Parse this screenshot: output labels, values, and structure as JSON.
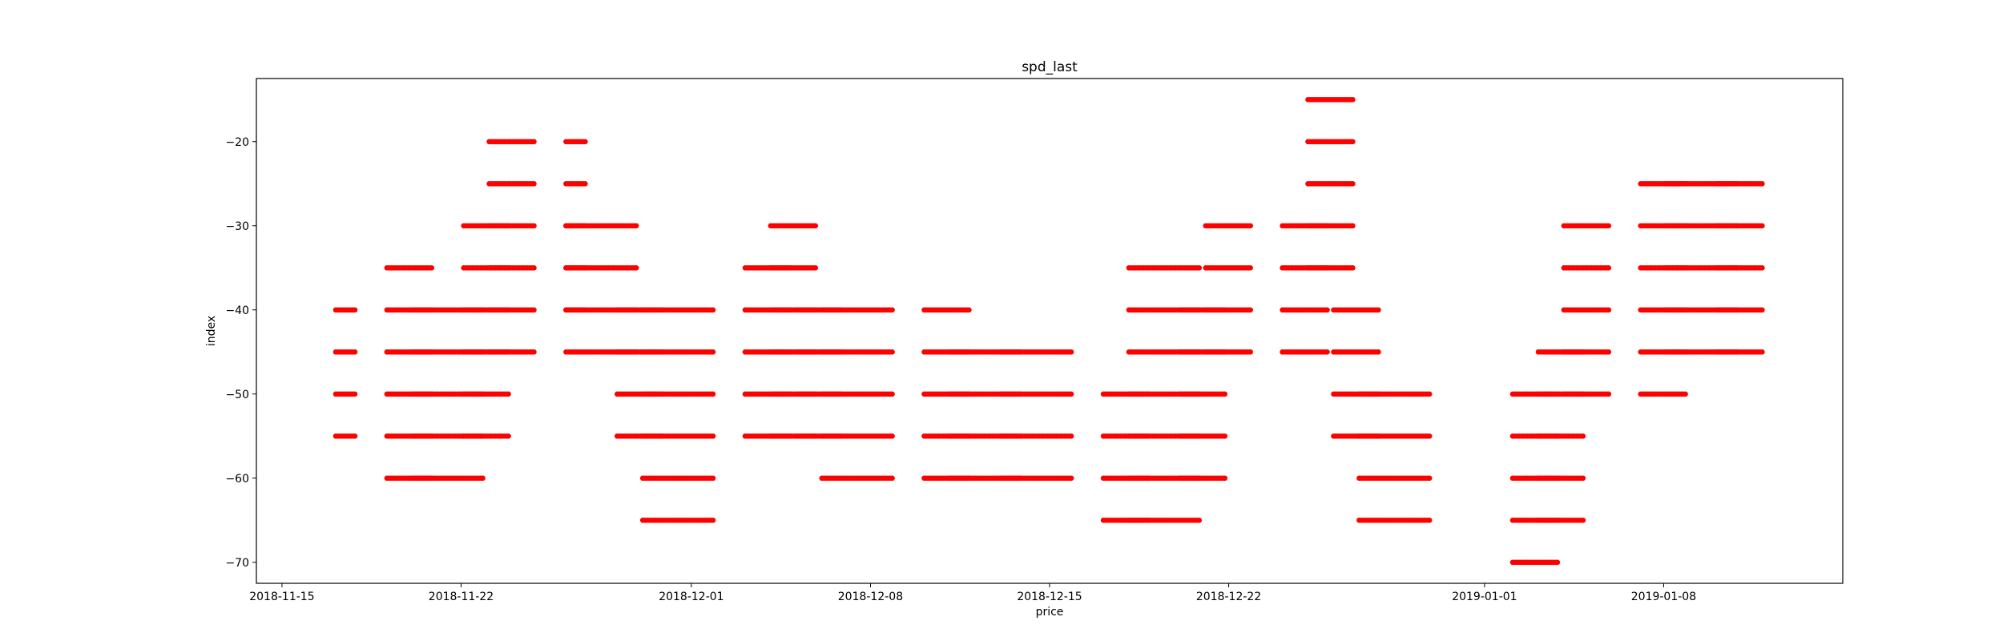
{
  "chart_data": {
    "type": "scatter",
    "title": "spd_last",
    "xlabel": "price",
    "ylabel": "index",
    "x_axis_type": "date",
    "xlim": [
      "2018-11-14",
      "2019-01-15"
    ],
    "ylim": [
      -72.5,
      -12.5
    ],
    "x_ticks": [
      "2018-11-15",
      "2018-11-22",
      "2018-12-01",
      "2018-12-08",
      "2018-12-15",
      "2018-12-22",
      "2019-01-01",
      "2019-01-08"
    ],
    "y_ticks": [
      -70,
      -60,
      -50,
      -40,
      -30,
      -20
    ],
    "grid": false,
    "legend": "none",
    "marker_color": "#ff0000",
    "groups": [
      {
        "x_start": "2018-11-17",
        "x_end": "2018-11-17",
        "y_values": [
          -40,
          -45,
          -50,
          -55
        ]
      },
      {
        "x_start": "2018-11-19",
        "x_end": "2018-11-20",
        "y_values": [
          -35,
          -40,
          -45,
          -50,
          -55,
          -60
        ]
      },
      {
        "x_start": "2018-11-20",
        "x_end": "2018-11-22",
        "y_values": [
          -40,
          -45,
          -50,
          -55,
          -60
        ]
      },
      {
        "x_start": "2018-11-22",
        "x_end": "2018-11-23",
        "y_values": [
          -30,
          -35,
          -40,
          -45,
          -50,
          -55
        ]
      },
      {
        "x_start": "2018-11-23",
        "x_end": "2018-11-24",
        "y_values": [
          -20,
          -25,
          -30,
          -35,
          -40,
          -45
        ]
      },
      {
        "x_start": "2018-11-26",
        "x_end": "2018-11-26",
        "y_values": [
          -20,
          -25,
          -30,
          -35,
          -40
        ]
      },
      {
        "x_start": "2018-11-26",
        "x_end": "2018-11-28",
        "y_values": [
          -30,
          -35,
          -40,
          -45
        ]
      },
      {
        "x_start": "2018-11-28",
        "x_end": "2018-11-29",
        "y_values": [
          -40,
          -45,
          -50,
          -55
        ]
      },
      {
        "x_start": "2018-11-29",
        "x_end": "2018-12-01",
        "y_values": [
          -40,
          -45,
          -50,
          -55,
          -60,
          -65
        ]
      },
      {
        "x_start": "2018-12-03",
        "x_end": "2018-12-04",
        "y_values": [
          -35,
          -40,
          -45,
          -50,
          -55
        ]
      },
      {
        "x_start": "2018-12-04",
        "x_end": "2018-12-05",
        "y_values": [
          -30,
          -35,
          -40,
          -45,
          -50,
          -55
        ]
      },
      {
        "x_start": "2018-12-05",
        "x_end": "2018-12-06",
        "y_values": [
          -40,
          -45,
          -50,
          -55
        ]
      },
      {
        "x_start": "2018-12-06",
        "x_end": "2018-12-08",
        "y_values": [
          -40,
          -45,
          -50,
          -55,
          -60
        ]
      },
      {
        "x_start": "2018-12-10",
        "x_end": "2018-12-11",
        "y_values": [
          -40,
          -45,
          -50,
          -55,
          -60
        ]
      },
      {
        "x_start": "2018-12-11",
        "x_end": "2018-12-13",
        "y_values": [
          -45,
          -50,
          -55,
          -60
        ]
      },
      {
        "x_start": "2018-12-13",
        "x_end": "2018-12-15",
        "y_values": [
          -45,
          -50,
          -55,
          -60
        ]
      },
      {
        "x_start": "2018-12-17",
        "x_end": "2018-12-18",
        "y_values": [
          -50,
          -55,
          -60,
          -65
        ]
      },
      {
        "x_start": "2018-12-18",
        "x_end": "2018-12-20",
        "y_values": [
          -35,
          -40,
          -45,
          -50,
          -55,
          -60,
          -65
        ]
      },
      {
        "x_start": "2018-12-20",
        "x_end": "2018-12-21",
        "y_values": [
          -40,
          -45,
          -50,
          -55,
          -60
        ]
      },
      {
        "x_start": "2018-12-21",
        "x_end": "2018-12-22",
        "y_values": [
          -30,
          -35,
          -40,
          -45
        ]
      },
      {
        "x_start": "2018-12-24",
        "x_end": "2018-12-25",
        "y_values": [
          -30,
          -35,
          -40,
          -45
        ]
      },
      {
        "x_start": "2018-12-25",
        "x_end": "2018-12-26",
        "y_values": [
          -15,
          -20,
          -25,
          -30,
          -35
        ]
      },
      {
        "x_start": "2018-12-26",
        "x_end": "2018-12-27",
        "y_values": [
          -40,
          -45,
          -50,
          -55
        ]
      },
      {
        "x_start": "2018-12-27",
        "x_end": "2018-12-29",
        "y_values": [
          -50,
          -55,
          -60,
          -65
        ]
      },
      {
        "x_start": "2019-01-02",
        "x_end": "2019-01-03",
        "y_values": [
          -50,
          -55,
          -60,
          -65,
          -70
        ]
      },
      {
        "x_start": "2019-01-03",
        "x_end": "2019-01-04",
        "y_values": [
          -45,
          -50,
          -55,
          -60,
          -65
        ]
      },
      {
        "x_start": "2019-01-04",
        "x_end": "2019-01-05",
        "y_values": [
          -30,
          -35,
          -40,
          -45,
          -50
        ]
      },
      {
        "x_start": "2019-01-07",
        "x_end": "2019-01-08",
        "y_values": [
          -25,
          -30,
          -35,
          -40,
          -45,
          -50
        ]
      },
      {
        "x_start": "2019-01-08",
        "x_end": "2019-01-10",
        "y_values": [
          -25,
          -30,
          -35,
          -40,
          -45
        ]
      },
      {
        "x_start": "2019-01-10",
        "x_end": "2019-01-11",
        "y_values": [
          -25,
          -30,
          -35,
          -40,
          -45
        ]
      }
    ]
  }
}
